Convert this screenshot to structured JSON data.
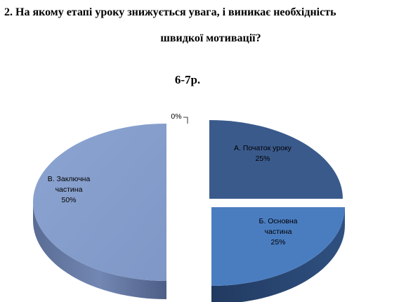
{
  "question": {
    "line1": "2.  На якому етапі уроку знижується увага, і виникає необхідність",
    "line2": "швидкої мотивації?"
  },
  "chart_data": {
    "type": "pie",
    "title": "6-7р.",
    "three_d": true,
    "exploded": true,
    "legend": "none",
    "slices": [
      {
        "label_lines": [
          "А. Початок уроку",
          "25%"
        ],
        "value": 25,
        "color": "#3a5a8c",
        "side_color": "#1e3050"
      },
      {
        "label_lines": [
          "Б. Основна",
          "частина",
          "25%"
        ],
        "value": 25,
        "color": "#4a7dc0",
        "side_color": "#26426a"
      },
      {
        "label_lines": [
          "В. Заключна",
          "частина",
          "50%"
        ],
        "value": 50,
        "color": "#8fa8d4",
        "side_color": "#5c6f99"
      },
      {
        "label_lines": [
          "0%"
        ],
        "value": 0,
        "color": "#c0c0c0",
        "side_color": "#909090"
      }
    ]
  }
}
